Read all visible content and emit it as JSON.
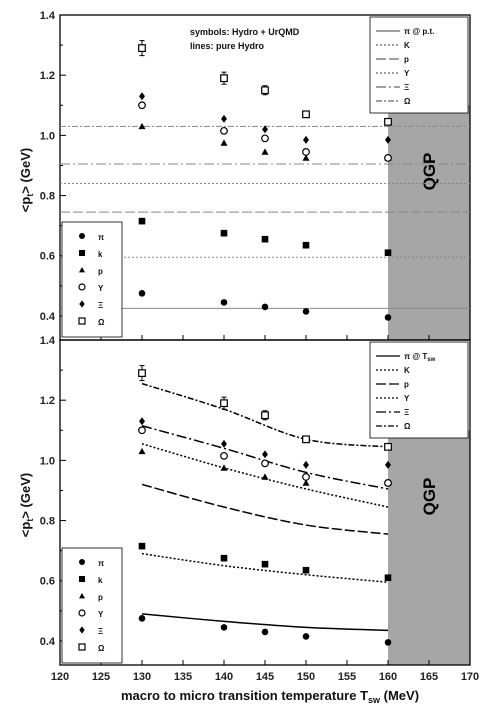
{
  "xaxis": {
    "label_main": "macro to micro transition temperature T",
    "label_sub": "sw",
    "label_unit": " (MeV)",
    "range": [
      120,
      170
    ],
    "ticks": [
      "120",
      "125",
      "130",
      "135",
      "140",
      "145",
      "150",
      "155",
      "160",
      "165",
      "170"
    ]
  },
  "yaxis": {
    "label_main": "<p",
    "label_sub": "t",
    "label_unit": "> (GeV)",
    "ticks": [
      "0.4",
      "0.6",
      "0.8",
      "1.0",
      "1.2",
      "1.4"
    ]
  },
  "qgp_label": "QGP",
  "colors": {
    "qgp_fill": "#a6a6a6",
    "marks": "#000000"
  },
  "chart_data": [
    {
      "type": "scatter",
      "panel": "top",
      "xlim": [
        120,
        170
      ],
      "ylim": [
        0.32,
        1.4
      ],
      "annotation_line1": "symbols: Hydro + UrQMD",
      "annotation_line2": "lines: pure Hydro",
      "qgp_region": [
        160,
        170
      ],
      "symbol_legend": [
        "π",
        "k",
        "p",
        "Y",
        "Ξ",
        "Ω"
      ],
      "line_legend": [
        "π @ p.t.",
        "K",
        "p",
        "Y",
        "Ξ",
        "Ω"
      ],
      "x": [
        130,
        140,
        145,
        150,
        160
      ],
      "series": [
        {
          "name": "π",
          "marker": "circle",
          "values": [
            0.475,
            0.445,
            0.43,
            0.415,
            0.395
          ]
        },
        {
          "name": "k",
          "marker": "square",
          "values": [
            0.715,
            0.675,
            0.655,
            0.635,
            0.61
          ]
        },
        {
          "name": "p",
          "marker": "triangle",
          "values": [
            1.03,
            0.975,
            0.945,
            0.925,
            0.925
          ]
        },
        {
          "name": "Y",
          "marker": "open-circle",
          "values": [
            1.1,
            1.015,
            0.99,
            0.945,
            0.925
          ]
        },
        {
          "name": "Ξ",
          "marker": "diamond",
          "values": [
            1.13,
            1.055,
            1.02,
            0.985,
            0.985
          ]
        },
        {
          "name": "Ω",
          "marker": "open-square",
          "values": [
            1.29,
            1.19,
            1.15,
            1.07,
            1.045
          ],
          "errors": [
            0.025,
            0.02,
            0.015,
            0.01,
            0.01
          ]
        }
      ],
      "hlines": [
        {
          "name": "π @ p.t.",
          "y": 0.425
        },
        {
          "name": "K",
          "y": 0.595
        },
        {
          "name": "p",
          "y": 0.745
        },
        {
          "name": "Y",
          "y": 0.84
        },
        {
          "name": "Ξ",
          "y": 0.905
        },
        {
          "name": "Ω",
          "y": 1.03
        }
      ]
    },
    {
      "type": "line",
      "panel": "bottom",
      "xlim": [
        120,
        170
      ],
      "ylim": [
        0.32,
        1.4
      ],
      "qgp_region": [
        160,
        170
      ],
      "symbol_legend": [
        "π",
        "k",
        "p",
        "Y",
        "Ξ",
        "Ω"
      ],
      "line_legend": [
        "π @ T",
        "K",
        "p",
        "Y",
        "Ξ",
        "Ω"
      ],
      "line_legend_sub": "sw",
      "x": [
        130,
        140,
        145,
        150,
        160
      ],
      "series": [
        {
          "name": "π",
          "marker": "circle",
          "values": [
            0.475,
            0.445,
            0.43,
            0.415,
            0.395
          ]
        },
        {
          "name": "k",
          "marker": "square",
          "values": [
            0.715,
            0.675,
            0.655,
            0.635,
            0.61
          ]
        },
        {
          "name": "p",
          "marker": "triangle",
          "values": [
            1.03,
            0.975,
            0.945,
            0.925,
            0.925
          ]
        },
        {
          "name": "Y",
          "marker": "open-circle",
          "values": [
            1.1,
            1.015,
            0.99,
            0.945,
            0.925
          ]
        },
        {
          "name": "Ξ",
          "marker": "diamond",
          "values": [
            1.13,
            1.055,
            1.02,
            0.985,
            0.985
          ]
        },
        {
          "name": "Ω",
          "marker": "open-square",
          "values": [
            1.29,
            1.19,
            1.15,
            1.07,
            1.045
          ],
          "errors": [
            0.025,
            0.02,
            0.015,
            0.01,
            0.01
          ]
        }
      ],
      "curves": [
        {
          "name": "π @ T",
          "x": [
            130,
            140,
            150,
            160
          ],
          "y": [
            0.49,
            0.465,
            0.445,
            0.435
          ]
        },
        {
          "name": "K",
          "x": [
            130,
            140,
            150,
            160
          ],
          "y": [
            0.69,
            0.65,
            0.62,
            0.595
          ]
        },
        {
          "name": "p",
          "x": [
            130,
            140,
            150,
            160
          ],
          "y": [
            0.92,
            0.845,
            0.785,
            0.755
          ]
        },
        {
          "name": "Y",
          "x": [
            130,
            140,
            150,
            160
          ],
          "y": [
            1.055,
            0.975,
            0.905,
            0.845
          ]
        },
        {
          "name": "Ξ",
          "x": [
            130,
            140,
            150,
            160
          ],
          "y": [
            1.115,
            1.04,
            0.96,
            0.905
          ]
        },
        {
          "name": "Ω",
          "x": [
            130,
            140,
            150,
            160
          ],
          "y": [
            1.255,
            1.17,
            1.07,
            1.045
          ]
        }
      ]
    }
  ]
}
